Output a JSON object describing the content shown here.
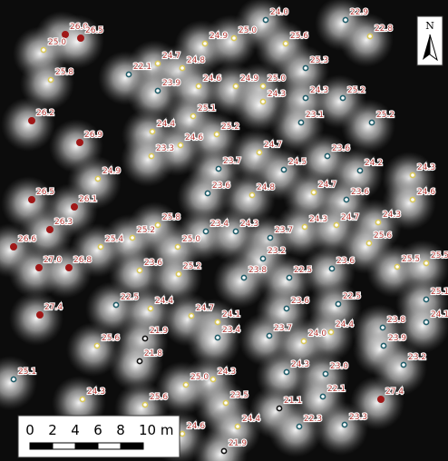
{
  "map": {
    "points": [
      {
        "label": "26.0",
        "color": "#a01818"
      },
      {
        "label": "26.5",
        "color": "#a01818"
      },
      {
        "label": "25.0",
        "color": "#d9c85a"
      },
      {
        "label": "25.8",
        "color": "#d9c85a"
      },
      {
        "label": "24.0",
        "color": "#1f5c68"
      },
      {
        "label": "22.9",
        "color": "#1f5c68"
      },
      {
        "label": "22.8",
        "color": "#d9c85a"
      },
      {
        "label": "24.9",
        "color": "#d9c85a"
      },
      {
        "label": "25.0",
        "color": "#d9c85a"
      },
      {
        "label": "25.6",
        "color": "#d9c85a"
      },
      {
        "label": "24.7",
        "color": "#d9c85a"
      },
      {
        "label": "24.8",
        "color": "#d9c85a"
      },
      {
        "label": "22.1",
        "color": "#1f5c68"
      },
      {
        "label": "23.9",
        "color": "#1f5c68"
      },
      {
        "label": "24.6",
        "color": "#d9c85a"
      },
      {
        "label": "24.9",
        "color": "#d9c85a"
      },
      {
        "label": "25.0",
        "color": "#d9c85a"
      },
      {
        "label": "25.3",
        "color": "#1f5c68"
      },
      {
        "label": "24.3",
        "color": "#d9c85a"
      },
      {
        "label": "24.3",
        "color": "#1f5c68"
      },
      {
        "label": "25.2",
        "color": "#1f5c68"
      },
      {
        "label": "26.2",
        "color": "#a01818"
      },
      {
        "label": "26.9",
        "color": "#a01818"
      },
      {
        "label": "25.1",
        "color": "#d9c85a"
      },
      {
        "label": "24.4",
        "color": "#d9c85a"
      },
      {
        "label": "25.2",
        "color": "#d9c85a"
      },
      {
        "label": "24.6",
        "color": "#d9c85a"
      },
      {
        "label": "23.3",
        "color": "#d9c85a"
      },
      {
        "label": "23.1",
        "color": "#1f5c68"
      },
      {
        "label": "25.2",
        "color": "#1f5c68"
      },
      {
        "label": "24.7",
        "color": "#d9c85a"
      },
      {
        "label": "23.6",
        "color": "#1f5c68"
      },
      {
        "label": "23.7",
        "color": "#1f5c68"
      },
      {
        "label": "24.5",
        "color": "#1f5c68"
      },
      {
        "label": "24.2",
        "color": "#1f5c68"
      },
      {
        "label": "24.9",
        "color": "#d9c85a"
      },
      {
        "label": "23.6",
        "color": "#1f5c68"
      },
      {
        "label": "24.8",
        "color": "#d9c85a"
      },
      {
        "label": "24.7",
        "color": "#d9c85a"
      },
      {
        "label": "23.6",
        "color": "#1f5c68"
      },
      {
        "label": "24.3",
        "color": "#d9c85a"
      },
      {
        "label": "24.6",
        "color": "#d9c85a"
      },
      {
        "label": "26.5",
        "color": "#a01818"
      },
      {
        "label": "26.1",
        "color": "#a01818"
      },
      {
        "label": "26.3",
        "color": "#a01818"
      },
      {
        "label": "26.6",
        "color": "#a01818"
      },
      {
        "label": "25.8",
        "color": "#d9c85a"
      },
      {
        "label": "25.2",
        "color": "#d9c85a"
      },
      {
        "label": "25.4",
        "color": "#d9c85a"
      },
      {
        "label": "23.4",
        "color": "#1f5c68"
      },
      {
        "label": "24.3",
        "color": "#1f5c68"
      },
      {
        "label": "23.7",
        "color": "#1f5c68"
      },
      {
        "label": "24.3",
        "color": "#d9c85a"
      },
      {
        "label": "24.7",
        "color": "#d9c85a"
      },
      {
        "label": "24.3",
        "color": "#d9c85a"
      },
      {
        "label": "25.6",
        "color": "#d9c85a"
      },
      {
        "label": "25.0",
        "color": "#d9c85a"
      },
      {
        "label": "23.2",
        "color": "#1f5c68"
      },
      {
        "label": "27.0",
        "color": "#a01818"
      },
      {
        "label": "26.8",
        "color": "#a01818"
      },
      {
        "label": "23.6",
        "color": "#d9c85a"
      },
      {
        "label": "25.2",
        "color": "#d9c85a"
      },
      {
        "label": "23.8",
        "color": "#1f5c68"
      },
      {
        "label": "22.5",
        "color": "#1f5c68"
      },
      {
        "label": "23.6",
        "color": "#1f5c68"
      },
      {
        "label": "25.5",
        "color": "#d9c85a"
      },
      {
        "label": "25.5",
        "color": "#d9c85a"
      },
      {
        "label": "22.5",
        "color": "#1f5c68"
      },
      {
        "label": "24.4",
        "color": "#d9c85a"
      },
      {
        "label": "27.4",
        "color": "#a01818"
      },
      {
        "label": "24.7",
        "color": "#d9c85a"
      },
      {
        "label": "24.1",
        "color": "#d9c85a"
      },
      {
        "label": "23.6",
        "color": "#1f5c68"
      },
      {
        "label": "22.5",
        "color": "#1f5c68"
      },
      {
        "label": "25.1",
        "color": "#1f5c68"
      },
      {
        "label": "23.8",
        "color": "#1f5c68"
      },
      {
        "label": "24.1",
        "color": "#1f5c68"
      },
      {
        "label": "23.4",
        "color": "#1f5c68"
      },
      {
        "label": "21.9",
        "color": "#111111"
      },
      {
        "label": "25.6",
        "color": "#d9c85a"
      },
      {
        "label": "23.7",
        "color": "#1f5c68"
      },
      {
        "label": "24.4",
        "color": "#d9c85a"
      },
      {
        "label": "24.0",
        "color": "#d9c85a"
      },
      {
        "label": "23.9",
        "color": "#1f5c68"
      },
      {
        "label": "21.8",
        "color": "#111111"
      },
      {
        "label": "25.1",
        "color": "#1f5c68"
      },
      {
        "label": "23.2",
        "color": "#1f5c68"
      },
      {
        "label": "24.3",
        "color": "#1f5c68"
      },
      {
        "label": "23.0",
        "color": "#1f5c68"
      },
      {
        "label": "24.3",
        "color": "#d9c85a"
      },
      {
        "label": "25.0",
        "color": "#d9c85a"
      },
      {
        "label": "22.1",
        "color": "#1f5c68"
      },
      {
        "label": "21.1",
        "color": "#111111"
      },
      {
        "label": "23.5",
        "color": "#d9c85a"
      },
      {
        "label": "25.6",
        "color": "#d9c85a"
      },
      {
        "label": "24.3",
        "color": "#d9c85a"
      },
      {
        "label": "27.4",
        "color": "#a01818"
      },
      {
        "label": "22.3",
        "color": "#1f5c68"
      },
      {
        "label": "23.3",
        "color": "#1f5c68"
      },
      {
        "label": "24.4",
        "color": "#d9c85a"
      },
      {
        "label": "24.6",
        "color": "#d9c85a"
      },
      {
        "label": "21.9",
        "color": "#111111"
      }
    ],
    "north": "N",
    "scale_bar": {
      "labels": [
        "0",
        "2",
        "4",
        "6",
        "8",
        "10 m"
      ]
    }
  }
}
